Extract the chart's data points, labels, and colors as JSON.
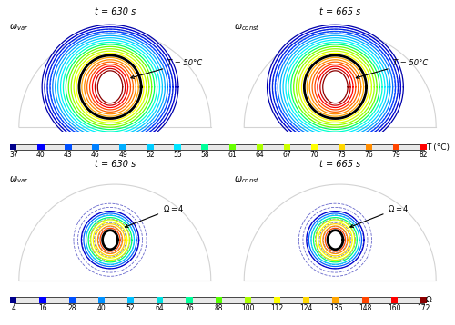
{
  "title_top_left": "t = 630 s",
  "title_top_right": "t = 665 s",
  "title_bot_left": "t = 630 s",
  "title_bot_right": "t = 665 s",
  "label_top_left": "ω_var",
  "label_top_right": "ω_const",
  "label_bot_left": "ω_var",
  "label_bot_right": "ω_const",
  "annot_top_left": "T = 50°C",
  "annot_top_right": "T = 50°C",
  "annot_bot_left": "Ω = 4",
  "annot_bot_right": "Ω = 4",
  "colorbar1_label": "T (°C)",
  "colorbar1_ticks": [
    37,
    40,
    43,
    46,
    49,
    52,
    55,
    58,
    61,
    64,
    67,
    70,
    73,
    76,
    79,
    82
  ],
  "colorbar1_colors": [
    "#00008B",
    "#0000FF",
    "#0050FF",
    "#0080FF",
    "#00AEFF",
    "#00CCFF",
    "#00E5FF",
    "#00FF99",
    "#66FF00",
    "#AAFF00",
    "#CCFF00",
    "#FFFF00",
    "#FFD700",
    "#FF8C00",
    "#FF4500",
    "#FF0000",
    "#8B0000"
  ],
  "colorbar2_label": "Ω",
  "colorbar2_ticks": [
    4,
    16,
    28,
    40,
    52,
    64,
    76,
    88,
    100,
    112,
    124,
    136,
    148,
    160,
    172
  ],
  "colorbar2_colors": [
    "#00008B",
    "#0000FF",
    "#0050FF",
    "#0090FF",
    "#00BFFF",
    "#00E0E0",
    "#00FF99",
    "#55FF00",
    "#AAFF00",
    "#FFFF00",
    "#FFD700",
    "#FFA500",
    "#FF4500",
    "#FF0000",
    "#8B0000",
    "#000000"
  ],
  "background_color": "#f0f0f0"
}
